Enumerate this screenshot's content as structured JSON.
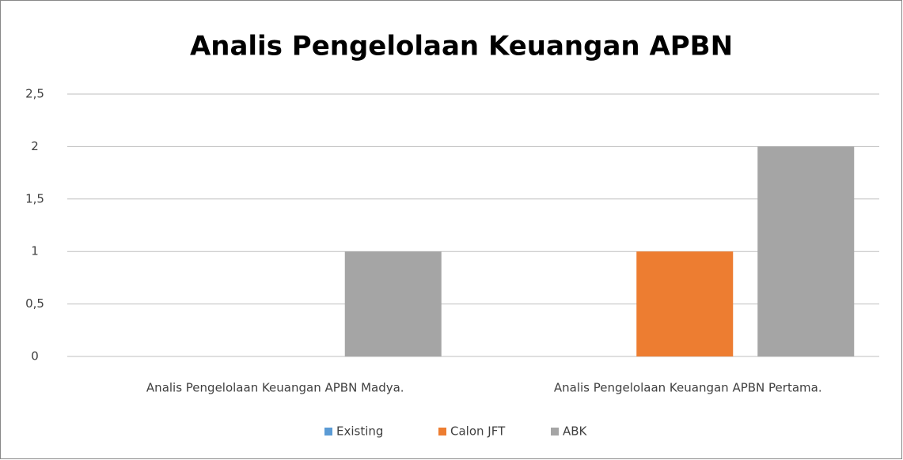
{
  "chart_data": {
    "type": "bar",
    "title": "Analis Pengelolaan Keuangan APBN",
    "categories": [
      "Analis Pengelolaan Keuangan APBN Madya.",
      "Analis Pengelolaan Keuangan APBN Pertama."
    ],
    "series": [
      {
        "name": "Existing",
        "color": "#5b9bd5",
        "values": [
          0,
          0
        ]
      },
      {
        "name": "Calon JFT",
        "color": "#ed7d31",
        "values": [
          0,
          1
        ]
      },
      {
        "name": "ABK",
        "color": "#a5a5a5",
        "values": [
          1,
          2
        ]
      }
    ],
    "ylim": [
      0,
      2.5
    ],
    "yticks": [
      0,
      {
        "value": 0.5,
        "label": "0,5"
      },
      1,
      {
        "value": 1.5,
        "label": "1,5"
      },
      2,
      {
        "value": 2.5,
        "label": "2,5"
      }
    ],
    "grid": true,
    "legend": "bottom"
  }
}
